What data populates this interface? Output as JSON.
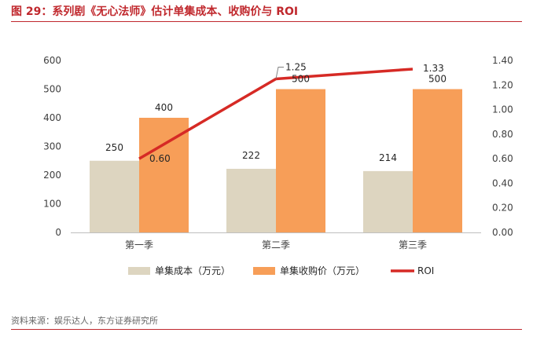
{
  "figure": {
    "title": "图 29：系列剧《无心法师》估计单集成本、收购价与 ROI",
    "source": "资料来源：娱乐达人，东方证券研究所"
  },
  "colors": {
    "accent": "#c0282d",
    "cost_bar": "#ddd5c0",
    "price_bar": "#f79e58",
    "roi_line": "#d62a25"
  },
  "chart_data": {
    "type": "bar",
    "categories": [
      "第一季",
      "第二季",
      "第三季"
    ],
    "series": [
      {
        "name": "单集成本（万元）",
        "values": [
          250,
          222,
          214
        ],
        "axis": "left",
        "labels": [
          "250",
          "222",
          "214"
        ]
      },
      {
        "name": "单集收购价（万元）",
        "values": [
          400,
          500,
          500
        ],
        "axis": "left",
        "labels": [
          "400",
          "500",
          "500"
        ]
      },
      {
        "name": "ROI",
        "type": "line",
        "values": [
          0.6,
          1.25,
          1.33
        ],
        "axis": "right",
        "labels": [
          "0.60",
          "1.25",
          "1.33"
        ]
      }
    ],
    "ylim": [
      0,
      600
    ],
    "y_ticks": [
      "0",
      "100",
      "200",
      "300",
      "400",
      "500",
      "600"
    ],
    "y2lim": [
      0,
      1.4
    ],
    "y2_ticks": [
      "0.00",
      "0.20",
      "0.40",
      "0.60",
      "0.80",
      "1.00",
      "1.20",
      "1.40"
    ],
    "grid": false,
    "legend_position": "bottom"
  }
}
